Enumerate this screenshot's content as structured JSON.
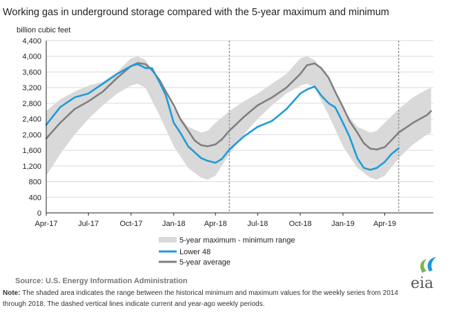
{
  "title": "Working gas in underground  storage compared with the 5-year maximum  and minimum",
  "source": "Source:  U.S. Energy Information Administration",
  "note_label": "Note:",
  "note_line1": " The shaded area indicates the range between the historical minimum and maximum values for the weekly series from 2014",
  "note_line2": "through 2018. The dashed vertical lines indicate current and year-ago weekly periods.",
  "logo_text": "eia",
  "colors": {
    "range": "#d9d9d9",
    "lower48": "#1f9bd7",
    "avg": "#7f7f7f",
    "grid": "#d9d9d9",
    "axis": "#222222",
    "dashed": "#999999"
  },
  "chart_data": {
    "type": "area",
    "ylabel": "billion cubic feet",
    "ylim": [
      0,
      4400
    ],
    "yticks": [
      0,
      400,
      800,
      1200,
      1600,
      2000,
      2400,
      2800,
      3200,
      3600,
      4000,
      4400
    ],
    "ytick_labels": [
      "0",
      "400",
      "800",
      "1,200",
      "1,600",
      "2,000",
      "2,400",
      "2,800",
      "3,200",
      "3,600",
      "4,000",
      "4,400"
    ],
    "x_ticks": [
      "Apr-17",
      "Jul-17",
      "Oct-17",
      "Jan-18",
      "Apr-18",
      "Jul-18",
      "Oct-18",
      "Jan-19",
      "Apr-19"
    ],
    "x_tick_dates": [
      "2017-04-01",
      "2017-07-01",
      "2017-10-01",
      "2018-01-01",
      "2018-04-01",
      "2018-07-01",
      "2018-10-01",
      "2019-01-01",
      "2019-04-01"
    ],
    "xlim": [
      "2017-04-01",
      "2019-07-15"
    ],
    "grid": "horizontal",
    "legend_position": "bottom",
    "dashed_lines": [
      "2018-05-01",
      "2019-05-01"
    ],
    "series": [
      {
        "name": "5-year maximum - minimum range",
        "kind": "band",
        "x": [
          "2017-04-01",
          "2017-05-01",
          "2017-06-01",
          "2017-07-01",
          "2017-08-01",
          "2017-09-01",
          "2017-10-01",
          "2017-10-15",
          "2017-11-01",
          "2017-12-01",
          "2018-01-01",
          "2018-02-01",
          "2018-03-01",
          "2018-03-15",
          "2018-04-01",
          "2018-05-01",
          "2018-06-01",
          "2018-07-01",
          "2018-08-01",
          "2018-09-01",
          "2018-10-01",
          "2018-10-15",
          "2018-11-01",
          "2018-12-01",
          "2019-01-01",
          "2019-02-01",
          "2019-03-01",
          "2019-03-15",
          "2019-04-01",
          "2019-05-01",
          "2019-06-01",
          "2019-07-01",
          "2019-07-10"
        ],
        "low": [
          950,
          1500,
          2000,
          2400,
          2750,
          3050,
          3250,
          3300,
          3200,
          2500,
          1700,
          1150,
          900,
          850,
          950,
          1500,
          2000,
          2400,
          2750,
          3050,
          3250,
          3300,
          3200,
          2500,
          1700,
          1150,
          900,
          850,
          950,
          1400,
          1750,
          2000,
          2050
        ],
        "high": [
          2600,
          2900,
          3100,
          3250,
          3350,
          3600,
          3950,
          4000,
          3900,
          3400,
          2650,
          2200,
          2050,
          2100,
          2300,
          2600,
          2850,
          3050,
          3300,
          3550,
          3950,
          4000,
          3900,
          3400,
          2650,
          2200,
          2050,
          2100,
          2300,
          2650,
          2950,
          3150,
          3200
        ]
      },
      {
        "name": "Lower 48",
        "kind": "line",
        "x": [
          "2017-04-01",
          "2017-05-01",
          "2017-06-01",
          "2017-07-01",
          "2017-08-01",
          "2017-09-01",
          "2017-10-01",
          "2017-10-15",
          "2017-11-01",
          "2017-11-15",
          "2017-12-01",
          "2017-12-15",
          "2018-01-01",
          "2018-01-15",
          "2018-02-01",
          "2018-02-15",
          "2018-03-01",
          "2018-03-15",
          "2018-04-01",
          "2018-04-15",
          "2018-05-01",
          "2018-06-01",
          "2018-07-01",
          "2018-08-01",
          "2018-09-01",
          "2018-10-01",
          "2018-10-15",
          "2018-11-01",
          "2018-11-15",
          "2018-12-01",
          "2018-12-15",
          "2019-01-01",
          "2019-01-15",
          "2019-02-01",
          "2019-02-15",
          "2019-03-01",
          "2019-03-15",
          "2019-04-01",
          "2019-04-15",
          "2019-05-01"
        ],
        "values": [
          2250,
          2700,
          2950,
          3050,
          3300,
          3550,
          3750,
          3800,
          3700,
          3700,
          3350,
          3000,
          2300,
          2050,
          1700,
          1550,
          1400,
          1330,
          1280,
          1380,
          1620,
          1950,
          2200,
          2350,
          2650,
          3050,
          3150,
          3230,
          3000,
          2800,
          2700,
          2300,
          1950,
          1400,
          1150,
          1100,
          1150,
          1300,
          1500,
          1650
        ]
      },
      {
        "name": "5-year average",
        "kind": "line",
        "x": [
          "2017-04-01",
          "2017-05-01",
          "2017-06-01",
          "2017-07-01",
          "2017-08-01",
          "2017-09-01",
          "2017-10-01",
          "2017-10-15",
          "2017-11-01",
          "2017-11-15",
          "2017-12-01",
          "2017-12-15",
          "2018-01-01",
          "2018-01-15",
          "2018-02-01",
          "2018-02-15",
          "2018-03-01",
          "2018-03-15",
          "2018-04-01",
          "2018-04-15",
          "2018-05-01",
          "2018-06-01",
          "2018-07-01",
          "2018-08-01",
          "2018-09-01",
          "2018-10-01",
          "2018-10-15",
          "2018-11-01",
          "2018-11-15",
          "2018-12-01",
          "2018-12-15",
          "2019-01-01",
          "2019-01-15",
          "2019-02-01",
          "2019-02-15",
          "2019-03-01",
          "2019-03-15",
          "2019-04-01",
          "2019-04-15",
          "2019-05-01",
          "2019-06-01",
          "2019-07-01",
          "2019-07-10"
        ],
        "values": [
          1900,
          2300,
          2650,
          2850,
          3100,
          3450,
          3750,
          3830,
          3800,
          3650,
          3400,
          3100,
          2750,
          2400,
          2100,
          1850,
          1730,
          1700,
          1750,
          1880,
          2100,
          2450,
          2750,
          2950,
          3200,
          3550,
          3770,
          3820,
          3700,
          3450,
          3100,
          2700,
          2350,
          2050,
          1780,
          1640,
          1620,
          1680,
          1850,
          2050,
          2300,
          2500,
          2600
        ]
      }
    ]
  }
}
